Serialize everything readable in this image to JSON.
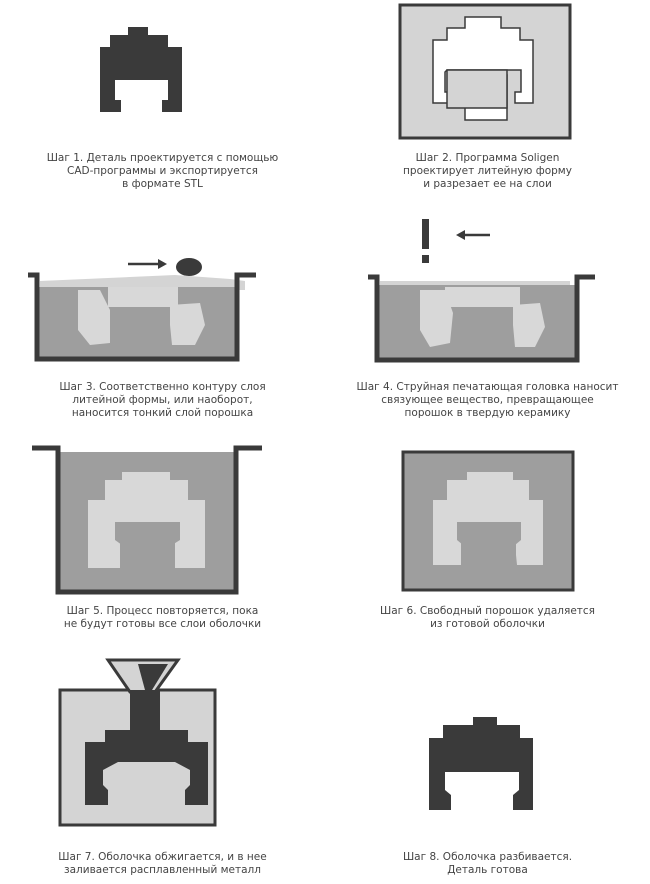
{
  "colors": {
    "dark": "#3a3a3a",
    "mold": "#d4d4d4",
    "powder": "#9e9e9e",
    "light": "#d8d8d8",
    "cavity": "#ffffff"
  },
  "steps": [
    {
      "caption": [
        "Шаг 1. Деталь проектируется с помощью",
        "CAD-программы и экспортируется",
        "в формате STL"
      ]
    },
    {
      "caption": [
        "Шаг 2. Программа Soligen",
        "проектирует литейную форму",
        "и разрезает ее на слои"
      ]
    },
    {
      "caption": [
        "Шаг 3. Соответственно контуру слоя",
        "литейной формы, или наоборот,",
        "наносится тонкий слой порошка"
      ]
    },
    {
      "caption": [
        "Шаг 4. Струйная печатающая головка наносит",
        "связующее вещество, превращающее",
        "порошок в твердую керамику"
      ]
    },
    {
      "caption": [
        "Шаг 5. Процесс повторяется, пока",
        "не будут готовы все слои оболочки"
      ]
    },
    {
      "caption": [
        "Шаг 6. Свободный порошок удаляется",
        "из готовой оболочки"
      ]
    },
    {
      "caption": [
        "Шаг 7. Оболочка обжигается, и в нее",
        "заливается расплавленный металл"
      ]
    },
    {
      "caption": [
        "Шаг 8. Оболочка разбивается.",
        "Деталь готова"
      ]
    }
  ]
}
